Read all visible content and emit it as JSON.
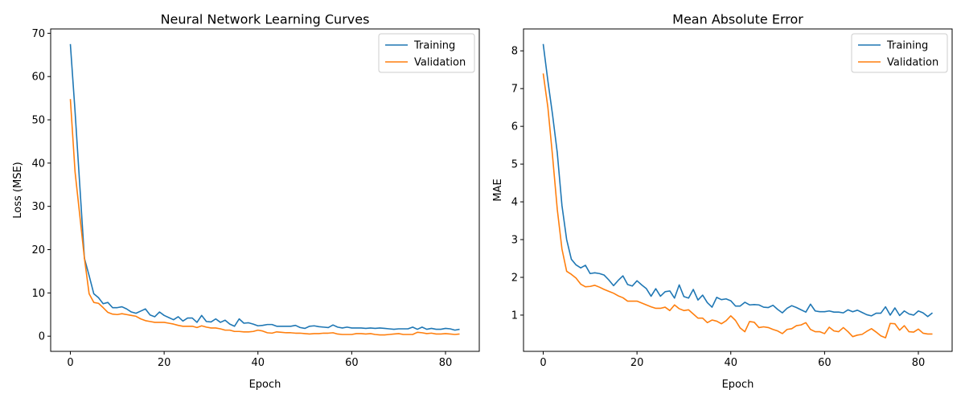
{
  "chart_data": [
    {
      "type": "line",
      "title": "Neural Network Learning Curves",
      "xlabel": "Epoch",
      "ylabel": "Loss (MSE)",
      "xlim": [
        -4.2,
        87.2
      ],
      "ylim": [
        -3.5,
        71
      ],
      "xticks": [
        0,
        20,
        40,
        60,
        80
      ],
      "yticks": [
        0,
        10,
        20,
        30,
        40,
        50,
        60,
        70
      ],
      "legend_position": "top-right",
      "grid": false,
      "series": [
        {
          "name": "Training",
          "color": "#1f77b4",
          "x": [
            0,
            1,
            2,
            3,
            4,
            5,
            6,
            7,
            8,
            9,
            10,
            11,
            12,
            13,
            14,
            15,
            16,
            17,
            18,
            19,
            20,
            21,
            22,
            23,
            24,
            25,
            26,
            27,
            28,
            29,
            30,
            31,
            32,
            33,
            34,
            35,
            36,
            37,
            38,
            39,
            40,
            41,
            42,
            43,
            44,
            45,
            46,
            47,
            48,
            49,
            50,
            51,
            52,
            53,
            54,
            55,
            56,
            57,
            58,
            59,
            60,
            61,
            62,
            63,
            64,
            65,
            66,
            67,
            68,
            69,
            70,
            71,
            72,
            73,
            74,
            75,
            76,
            77,
            78,
            79,
            80,
            81,
            82,
            83
          ],
          "values": [
            67.5,
            52,
            35,
            18,
            14,
            9.8,
            8.9,
            7.5,
            7.8,
            6.6,
            6.6,
            6.8,
            6.3,
            5.6,
            5.3,
            5.8,
            6.3,
            4.9,
            4.5,
            5.6,
            4.8,
            4.3,
            3.8,
            4.5,
            3.5,
            4.2,
            4.2,
            3.2,
            4.8,
            3.4,
            3.3,
            4.0,
            3.2,
            3.7,
            2.8,
            2.3,
            4.0,
            3.0,
            3.1,
            2.8,
            2.4,
            2.5,
            2.7,
            2.7,
            2.3,
            2.3,
            2.3,
            2.3,
            2.5,
            2.0,
            1.8,
            2.3,
            2.4,
            2.2,
            2.1,
            2.0,
            2.6,
            2.1,
            1.9,
            2.1,
            1.9,
            1.9,
            1.9,
            1.8,
            1.9,
            1.8,
            1.9,
            1.8,
            1.7,
            1.6,
            1.7,
            1.7,
            1.7,
            2.1,
            1.6,
            2.1,
            1.6,
            1.8,
            1.6,
            1.6,
            1.8,
            1.7,
            1.4,
            1.6
          ]
        },
        {
          "name": "Validation",
          "color": "#ff7f0e",
          "x": [
            0,
            1,
            2,
            3,
            4,
            5,
            6,
            7,
            8,
            9,
            10,
            11,
            12,
            13,
            14,
            15,
            16,
            17,
            18,
            19,
            20,
            21,
            22,
            23,
            24,
            25,
            26,
            27,
            28,
            29,
            30,
            31,
            32,
            33,
            34,
            35,
            36,
            37,
            38,
            39,
            40,
            41,
            42,
            43,
            44,
            45,
            46,
            47,
            48,
            49,
            50,
            51,
            52,
            53,
            54,
            55,
            56,
            57,
            58,
            59,
            60,
            61,
            62,
            63,
            64,
            65,
            66,
            67,
            68,
            69,
            70,
            71,
            72,
            73,
            74,
            75,
            76,
            77,
            78,
            79,
            80,
            81,
            82,
            83
          ],
          "values": [
            54.8,
            38,
            28,
            18,
            9.8,
            7.8,
            7.6,
            6.6,
            5.5,
            5.1,
            5.0,
            5.2,
            5.0,
            4.8,
            4.6,
            4.0,
            3.6,
            3.4,
            3.2,
            3.2,
            3.2,
            3.0,
            2.8,
            2.5,
            2.3,
            2.3,
            2.3,
            2.0,
            2.4,
            2.1,
            1.9,
            1.9,
            1.7,
            1.4,
            1.4,
            1.1,
            1.1,
            1.0,
            1.0,
            1.1,
            1.4,
            1.2,
            0.8,
            0.7,
            1.0,
            0.9,
            0.8,
            0.8,
            0.7,
            0.7,
            0.6,
            0.5,
            0.6,
            0.6,
            0.7,
            0.7,
            0.8,
            0.5,
            0.4,
            0.4,
            0.4,
            0.6,
            0.6,
            0.5,
            0.6,
            0.4,
            0.3,
            0.3,
            0.4,
            0.5,
            0.6,
            0.4,
            0.4,
            0.4,
            0.9,
            0.8,
            0.6,
            0.7,
            0.5,
            0.5,
            0.6,
            0.5,
            0.4,
            0.5
          ]
        }
      ]
    },
    {
      "type": "line",
      "title": "Mean Absolute Error",
      "xlabel": "Epoch",
      "ylabel": "MAE",
      "xlim": [
        -4.2,
        87.2
      ],
      "ylim": [
        0.04,
        8.58
      ],
      "xticks": [
        0,
        20,
        40,
        60,
        80
      ],
      "yticks": [
        1,
        2,
        3,
        4,
        5,
        6,
        7,
        8
      ],
      "legend_position": "top-right",
      "grid": false,
      "series": [
        {
          "name": "Training",
          "color": "#1f77b4",
          "x": [
            0,
            1,
            2,
            3,
            4,
            5,
            6,
            7,
            8,
            9,
            10,
            11,
            12,
            13,
            14,
            15,
            16,
            17,
            18,
            19,
            20,
            21,
            22,
            23,
            24,
            25,
            26,
            27,
            28,
            29,
            30,
            31,
            32,
            33,
            34,
            35,
            36,
            37,
            38,
            39,
            40,
            41,
            42,
            43,
            44,
            45,
            46,
            47,
            48,
            49,
            50,
            51,
            52,
            53,
            54,
            55,
            56,
            57,
            58,
            59,
            60,
            61,
            62,
            63,
            64,
            65,
            66,
            67,
            68,
            69,
            70,
            71,
            72,
            73,
            74,
            75,
            76,
            77,
            78,
            79,
            80,
            81,
            82,
            83
          ],
          "values": [
            8.18,
            7.2,
            6.3,
            5.3,
            3.9,
            3.0,
            2.48,
            2.33,
            2.25,
            2.32,
            2.1,
            2.12,
            2.1,
            2.06,
            1.93,
            1.78,
            1.92,
            2.04,
            1.81,
            1.77,
            1.91,
            1.8,
            1.7,
            1.5,
            1.7,
            1.5,
            1.62,
            1.64,
            1.45,
            1.8,
            1.49,
            1.45,
            1.68,
            1.4,
            1.53,
            1.33,
            1.21,
            1.47,
            1.41,
            1.43,
            1.38,
            1.24,
            1.24,
            1.34,
            1.27,
            1.28,
            1.27,
            1.21,
            1.2,
            1.26,
            1.15,
            1.06,
            1.18,
            1.25,
            1.2,
            1.14,
            1.08,
            1.29,
            1.11,
            1.09,
            1.09,
            1.11,
            1.08,
            1.08,
            1.06,
            1.14,
            1.09,
            1.13,
            1.07,
            1.01,
            0.98,
            1.05,
            1.05,
            1.22,
            1.0,
            1.19,
            0.99,
            1.11,
            1.03,
            1.0,
            1.11,
            1.06,
            0.96,
            1.06
          ]
        },
        {
          "name": "Validation",
          "color": "#ff7f0e",
          "x": [
            0,
            1,
            2,
            3,
            4,
            5,
            6,
            7,
            8,
            9,
            10,
            11,
            12,
            13,
            14,
            15,
            16,
            17,
            18,
            19,
            20,
            21,
            22,
            23,
            24,
            25,
            26,
            27,
            28,
            29,
            30,
            31,
            32,
            33,
            34,
            35,
            36,
            37,
            38,
            39,
            40,
            41,
            42,
            43,
            44,
            45,
            46,
            47,
            48,
            49,
            50,
            51,
            52,
            53,
            54,
            55,
            56,
            57,
            58,
            59,
            60,
            61,
            62,
            63,
            64,
            65,
            66,
            67,
            68,
            69,
            70,
            71,
            72,
            73,
            74,
            75,
            76,
            77,
            78,
            79,
            80,
            81,
            82,
            83
          ],
          "values": [
            7.4,
            6.5,
            5.2,
            3.8,
            2.75,
            2.16,
            2.08,
            1.98,
            1.82,
            1.75,
            1.76,
            1.79,
            1.74,
            1.68,
            1.63,
            1.58,
            1.51,
            1.46,
            1.37,
            1.37,
            1.37,
            1.32,
            1.27,
            1.22,
            1.18,
            1.18,
            1.21,
            1.12,
            1.27,
            1.17,
            1.12,
            1.14,
            1.03,
            0.92,
            0.92,
            0.8,
            0.87,
            0.84,
            0.77,
            0.85,
            0.98,
            0.86,
            0.66,
            0.56,
            0.83,
            0.81,
            0.67,
            0.69,
            0.67,
            0.62,
            0.58,
            0.51,
            0.62,
            0.64,
            0.72,
            0.74,
            0.8,
            0.62,
            0.56,
            0.56,
            0.51,
            0.68,
            0.58,
            0.56,
            0.67,
            0.56,
            0.43,
            0.47,
            0.49,
            0.57,
            0.64,
            0.55,
            0.45,
            0.4,
            0.78,
            0.77,
            0.6,
            0.72,
            0.56,
            0.55,
            0.63,
            0.52,
            0.5,
            0.5
          ]
        }
      ]
    }
  ]
}
